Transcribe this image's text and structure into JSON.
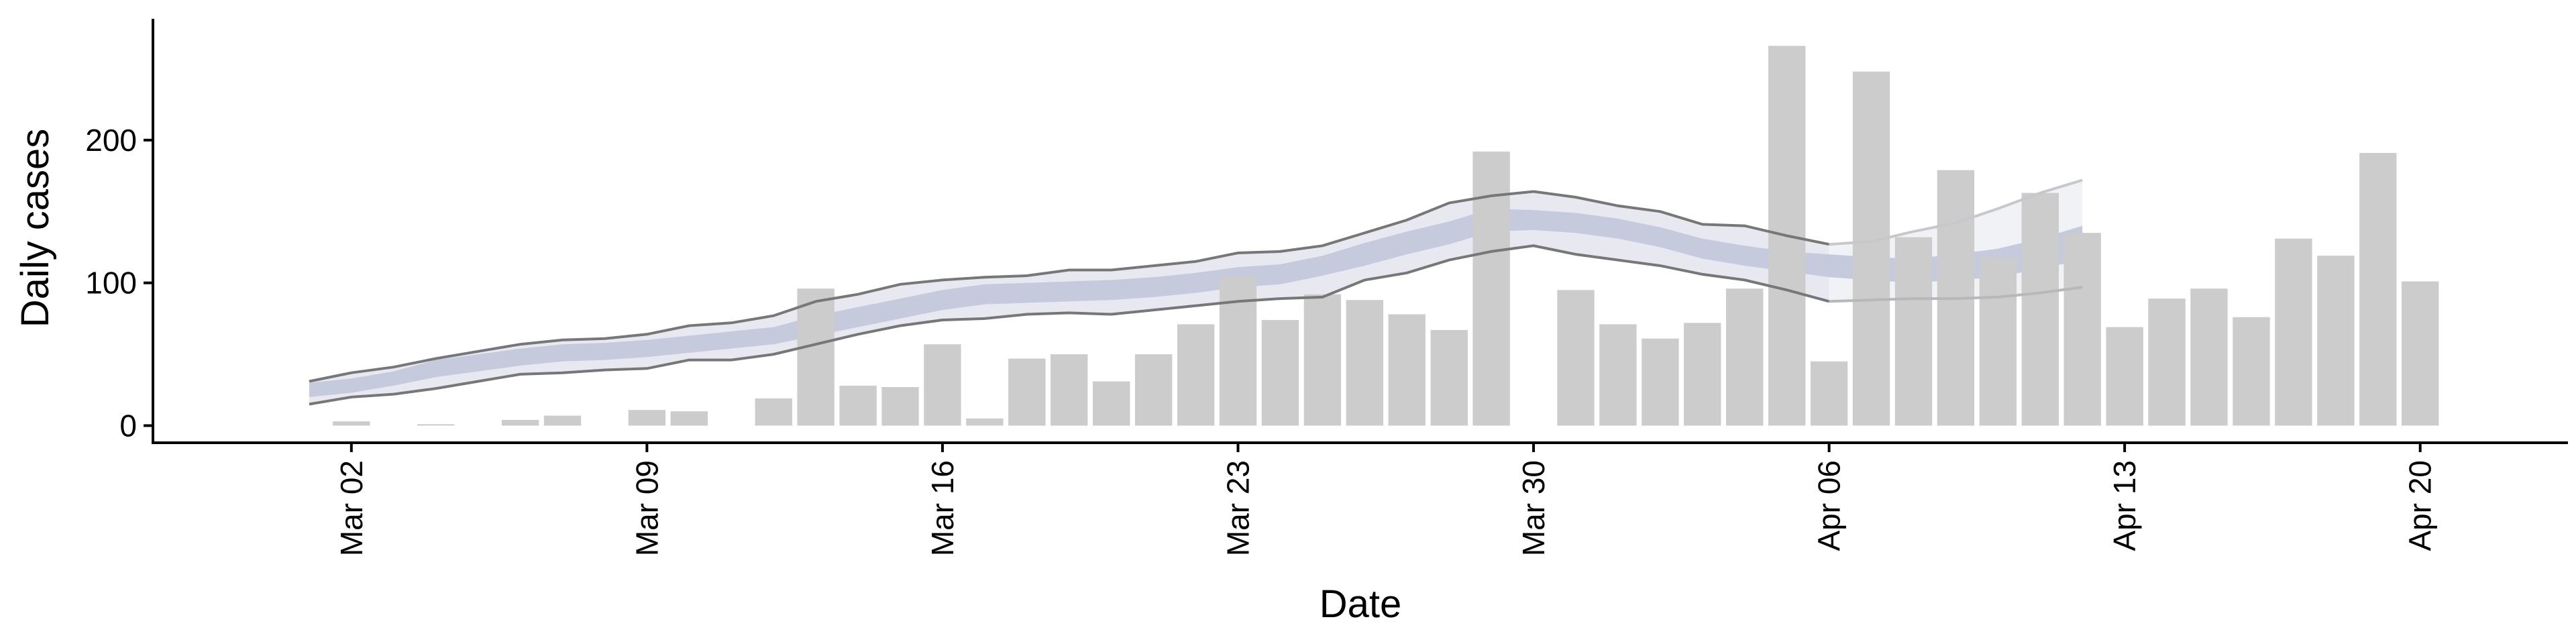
{
  "chart_data": {
    "type": "bar",
    "xlabel": "Date",
    "ylabel": "Daily cases",
    "ylim": [
      -12,
      285
    ],
    "y_ticks": [
      0,
      100,
      200
    ],
    "y_tick_labels": [
      "0",
      "100",
      "200"
    ],
    "x_range_days": [
      -3.7,
      53.5
    ],
    "x_ticks": [
      {
        "day": 1,
        "label": "Mar 02"
      },
      {
        "day": 8,
        "label": "Mar 09"
      },
      {
        "day": 15,
        "label": "Mar 16"
      },
      {
        "day": 22,
        "label": "Mar 23"
      },
      {
        "day": 29,
        "label": "Mar 30"
      },
      {
        "day": 36,
        "label": "Apr 06"
      },
      {
        "day": 43,
        "label": "Apr 13"
      },
      {
        "day": 50,
        "label": "Apr 20"
      }
    ],
    "grid": false,
    "colors": {
      "bars": "#cccccc",
      "median_band": "#c5cbdc",
      "outer_band": "#e8e9f0",
      "nowcast_band": "#f1f2f6",
      "interval_lines": "#777777",
      "axis": "#000000"
    },
    "bars": {
      "start_day": 1,
      "values": [
        3,
        0,
        1,
        0,
        4,
        7,
        0,
        11,
        10,
        0,
        19,
        96,
        28,
        27,
        57,
        5,
        47,
        50,
        31,
        50,
        71,
        105,
        74,
        92,
        88,
        78,
        67,
        192,
        0,
        95,
        71,
        61,
        72,
        96,
        266,
        45,
        248,
        132,
        179,
        118,
        163,
        135,
        69,
        89,
        96,
        76,
        131,
        119,
        191,
        101
      ]
    },
    "estimate": {
      "start_day": 0,
      "median": [
        25,
        28,
        33,
        40,
        44,
        48,
        51,
        52,
        54,
        57,
        60,
        63,
        70,
        76,
        82,
        88,
        92,
        93,
        94,
        95,
        97,
        100,
        104,
        106,
        112,
        120,
        128,
        135,
        144,
        144,
        142,
        138,
        132,
        124,
        119,
        115,
        112,
        110,
        108,
        110,
        113,
        120,
        128
      ],
      "inner_lower": [
        20,
        23,
        28,
        34,
        38,
        42,
        45,
        46,
        48,
        51,
        54,
        57,
        63,
        69,
        75,
        81,
        85,
        86,
        87,
        88,
        90,
        93,
        97,
        99,
        105,
        112,
        120,
        127,
        136,
        137,
        135,
        131,
        125,
        117,
        112,
        108,
        104,
        102,
        100,
        102,
        104,
        110,
        116
      ],
      "inner_upper": [
        30,
        33,
        38,
        46,
        50,
        54,
        57,
        58,
        60,
        63,
        66,
        69,
        77,
        83,
        89,
        95,
        99,
        100,
        101,
        102,
        104,
        107,
        111,
        113,
        119,
        128,
        136,
        143,
        152,
        151,
        149,
        145,
        139,
        131,
        126,
        122,
        120,
        118,
        117,
        120,
        124,
        131,
        140
      ],
      "outer_lower": [
        15,
        20,
        22,
        26,
        31,
        36,
        37,
        39,
        40,
        46,
        46,
        50,
        57,
        64,
        70,
        74,
        75,
        78,
        79,
        78,
        81,
        84,
        87,
        89,
        90,
        102,
        107,
        116,
        122,
        126,
        120,
        116,
        112,
        106,
        102,
        95,
        87,
        88,
        89,
        89,
        90,
        93,
        97
      ],
      "outer_upper": [
        31,
        37,
        41,
        47,
        52,
        57,
        60,
        61,
        64,
        70,
        72,
        77,
        87,
        92,
        99,
        102,
        104,
        105,
        109,
        109,
        112,
        115,
        121,
        122,
        126,
        135,
        144,
        156,
        161,
        164,
        160,
        154,
        150,
        141,
        140,
        133,
        127,
        129,
        136,
        142,
        152,
        163,
        172
      ],
      "nowcast_start_day": 36
    }
  }
}
